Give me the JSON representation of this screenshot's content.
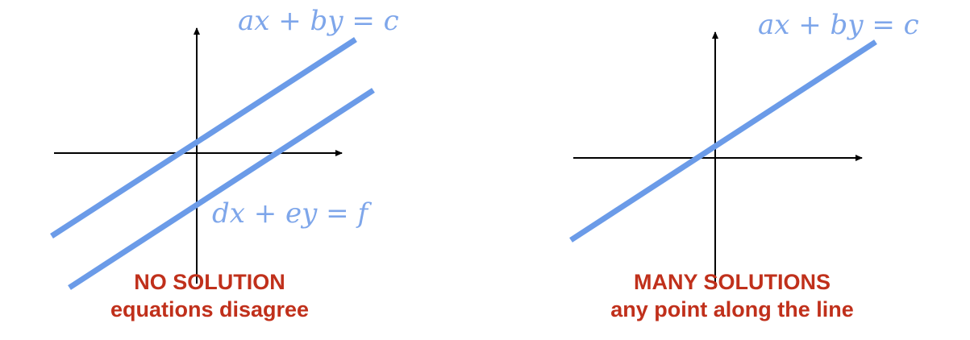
{
  "colors": {
    "line": "#6b9be8",
    "equation_text": "#7ea6ea",
    "caption": "#c0301b",
    "axis": "#000000"
  },
  "panels": [
    {
      "equation_top": "ax + by = c",
      "equation_bottom": "dx + ey = f",
      "caption_title": "NO SOLUTION",
      "caption_subtitle": "equations disagree"
    },
    {
      "equation_top": "ax + by = c",
      "caption_title": "MANY SOLUTIONS",
      "caption_subtitle": "any point along the line"
    }
  ]
}
